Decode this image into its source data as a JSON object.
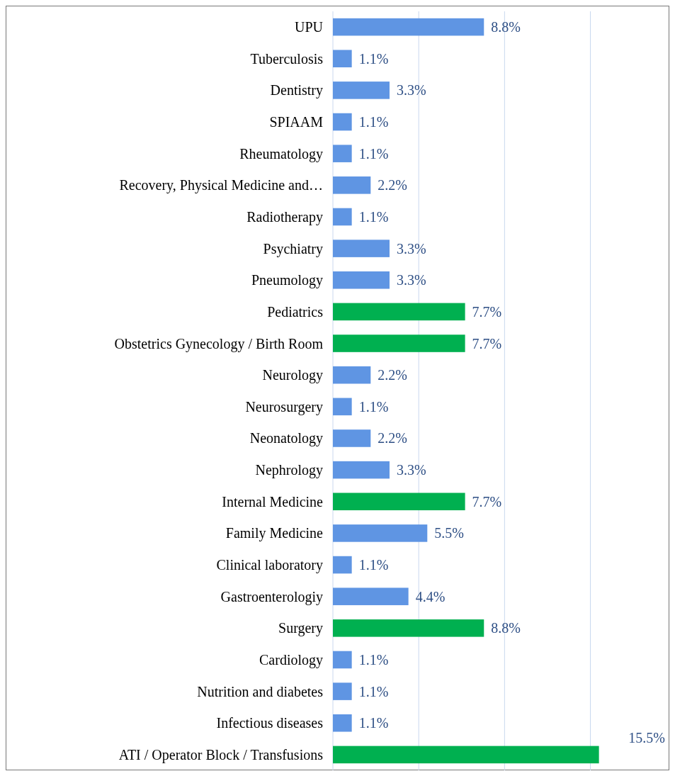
{
  "chart_data": {
    "type": "bar",
    "orientation": "horizontal",
    "categories": [
      "UPU",
      "Tuberculosis",
      "Dentistry",
      "SPIAAM",
      "Rheumatology",
      "Recovery, Physical Medicine and…",
      "Radiotherapy",
      "Psychiatry",
      "Pneumology",
      "Pediatrics",
      "Obstetrics Gynecology / Birth Room",
      "Neurology",
      "Neurosurgery",
      "Neonatology",
      "Nephrology",
      "Internal Medicine",
      "Family Medicine",
      "Clinical laboratory",
      "Gastroenterologiy",
      "Surgery",
      "Cardiology",
      "Nutrition and diabetes",
      "Infectious diseases",
      "ATI / Operator Block / Transfusions"
    ],
    "values": [
      8.8,
      1.1,
      3.3,
      1.1,
      1.1,
      2.2,
      1.1,
      3.3,
      3.3,
      7.7,
      7.7,
      2.2,
      1.1,
      2.2,
      3.3,
      7.7,
      5.5,
      1.1,
      4.4,
      8.8,
      1.1,
      1.1,
      1.1,
      15.5
    ],
    "value_labels": [
      "8.8%",
      "1.1%",
      "3.3%",
      "1.1%",
      "1.1%",
      "2.2%",
      "1.1%",
      "3.3%",
      "3.3%",
      "7.7%",
      "7.7%",
      "2.2%",
      "1.1%",
      "2.2%",
      "3.3%",
      "7.7%",
      "5.5%",
      "1.1%",
      "4.4%",
      "8.8%",
      "1.1%",
      "1.1%",
      "1.1%",
      "15.5%"
    ],
    "colors": [
      "#5f95e3",
      "#5f95e3",
      "#5f95e3",
      "#5f95e3",
      "#5f95e3",
      "#5f95e3",
      "#5f95e3",
      "#5f95e3",
      "#5f95e3",
      "#00b050",
      "#00b050",
      "#5f95e3",
      "#5f95e3",
      "#5f95e3",
      "#5f95e3",
      "#00b050",
      "#5f95e3",
      "#5f95e3",
      "#5f95e3",
      "#00b050",
      "#5f95e3",
      "#5f95e3",
      "#5f95e3",
      "#00b050"
    ],
    "xlim": [
      0,
      19.6
    ],
    "xticks": [
      {
        "value": 0,
        "label": null
      },
      {
        "value": 5,
        "label": null
      },
      {
        "value": 10,
        "label": null
      },
      {
        "value": 15,
        "label": null
      }
    ],
    "grid": "x"
  }
}
